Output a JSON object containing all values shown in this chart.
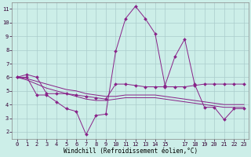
{
  "xlabel": "Windchill (Refroidissement éolien,°C)",
  "bg_color": "#cceee8",
  "grid_color": "#aacccc",
  "line_color": "#882288",
  "xlim": [
    -0.5,
    23.5
  ],
  "ylim": [
    1.5,
    11.5
  ],
  "xtick_vals": [
    0,
    1,
    2,
    3,
    4,
    5,
    6,
    7,
    8,
    9,
    10,
    11,
    12,
    13,
    14,
    15,
    17,
    18,
    19,
    20,
    21,
    22,
    23
  ],
  "ytick_vals": [
    2,
    3,
    4,
    5,
    6,
    7,
    8,
    9,
    10,
    11
  ],
  "x_vals": [
    0,
    1,
    2,
    3,
    4,
    5,
    6,
    7,
    8,
    9,
    10,
    11,
    12,
    13,
    14,
    15,
    16,
    17,
    18,
    19,
    20,
    21,
    22,
    23
  ],
  "series": [
    {
      "y": [
        6.0,
        6.2,
        6.0,
        4.8,
        4.8,
        4.8,
        4.7,
        4.6,
        4.5,
        4.4,
        5.5,
        5.5,
        5.4,
        5.3,
        5.3,
        5.3,
        5.3,
        5.3,
        5.4,
        5.5,
        5.5,
        5.5,
        5.5,
        5.5
      ],
      "marker": true
    },
    {
      "y": [
        6.0,
        6.0,
        4.7,
        4.7,
        4.2,
        3.7,
        3.5,
        1.8,
        3.2,
        3.3,
        7.9,
        10.3,
        11.2,
        10.3,
        9.2,
        5.4,
        7.5,
        8.8,
        5.5,
        3.8,
        3.8,
        2.9,
        3.7,
        3.7
      ],
      "marker": true
    },
    {
      "y": [
        6.0,
        5.8,
        5.5,
        5.2,
        5.0,
        4.8,
        4.6,
        4.4,
        4.3,
        4.3,
        4.4,
        4.5,
        4.5,
        4.5,
        4.5,
        4.4,
        4.3,
        4.2,
        4.1,
        4.0,
        3.9,
        3.8,
        3.8,
        3.8
      ],
      "marker": false
    },
    {
      "y": [
        6.0,
        5.9,
        5.7,
        5.5,
        5.3,
        5.1,
        5.0,
        4.8,
        4.7,
        4.6,
        4.6,
        4.7,
        4.7,
        4.7,
        4.7,
        4.6,
        4.5,
        4.4,
        4.3,
        4.2,
        4.1,
        4.0,
        4.0,
        4.0
      ],
      "marker": false
    }
  ],
  "marker_style": "D",
  "markersize": 2.0,
  "linewidth": 0.7,
  "tick_fontsize": 5,
  "xlabel_fontsize": 5.5
}
